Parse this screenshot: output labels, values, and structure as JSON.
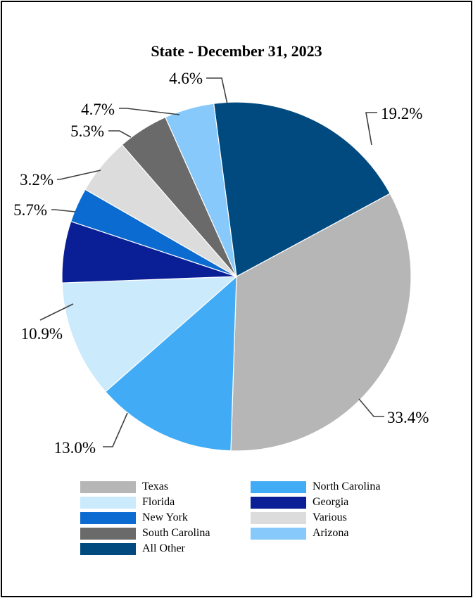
{
  "chart_data": {
    "type": "pie",
    "title": "State - December 31, 2023",
    "slices": [
      {
        "name": "All Other",
        "value": 19.2,
        "label": "19.2%",
        "color": "#004a80"
      },
      {
        "name": "Texas",
        "value": 33.4,
        "label": "33.4%",
        "color": "#b6b6b6"
      },
      {
        "name": "North Carolina",
        "value": 13.0,
        "label": "13.0%",
        "color": "#41acf5"
      },
      {
        "name": "Florida",
        "value": 10.9,
        "label": "10.9%",
        "color": "#cbeafb"
      },
      {
        "name": "Georgia",
        "value": 5.7,
        "label": "5.7%",
        "color": "#0a1f96"
      },
      {
        "name": "New York",
        "value": 3.2,
        "label": "3.2%",
        "color": "#0b6bd0"
      },
      {
        "name": "Various",
        "value": 5.3,
        "label": "5.3%",
        "color": "#dcdcdc"
      },
      {
        "name": "South Carolina",
        "value": 4.7,
        "label": "4.7%",
        "color": "#6a6a6a"
      },
      {
        "name": "Arizona",
        "value": 4.6,
        "label": "4.6%",
        "color": "#86c9fa"
      }
    ],
    "legend": [
      {
        "name": "Texas",
        "color": "#b6b6b6"
      },
      {
        "name": "North Carolina",
        "color": "#41acf5"
      },
      {
        "name": "Florida",
        "color": "#cbeafb"
      },
      {
        "name": "Georgia",
        "color": "#0a1f96"
      },
      {
        "name": "New York",
        "color": "#0b6bd0"
      },
      {
        "name": "Various",
        "color": "#dcdcdc"
      },
      {
        "name": "South Carolina",
        "color": "#6a6a6a"
      },
      {
        "name": "Arizona",
        "color": "#86c9fa"
      },
      {
        "name": "All Other",
        "color": "#004a80"
      }
    ],
    "legend_position": "bottom"
  }
}
